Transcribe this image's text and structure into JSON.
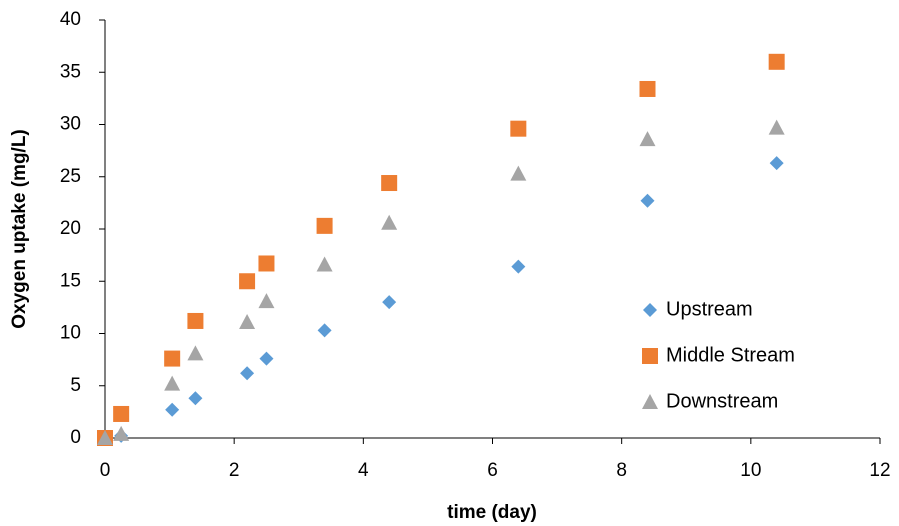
{
  "chart_data": {
    "type": "scatter",
    "xlabel": "time (day)",
    "ylabel": "Oxygen uptake (mg/L)",
    "xlim": [
      0,
      12
    ],
    "xticks": [
      0,
      2,
      4,
      6,
      8,
      10,
      12
    ],
    "ylim": [
      0,
      40
    ],
    "yticks": [
      0,
      5,
      10,
      15,
      20,
      25,
      30,
      35,
      40
    ],
    "grid": false,
    "legend": "center right",
    "series": [
      {
        "name": "Upstream",
        "color": "#5b9bd5",
        "marker": "diamond",
        "x": [
          0,
          0.25,
          1.04,
          1.4,
          2.2,
          2.5,
          3.4,
          4.4,
          6.4,
          8.4,
          10.4
        ],
        "values": [
          0,
          0.2,
          2.7,
          3.8,
          6.2,
          7.6,
          10.3,
          13,
          16.4,
          22.7,
          26.3
        ]
      },
      {
        "name": "Middle Stream",
        "color": "#ed7d31",
        "marker": "square",
        "x": [
          0,
          0.25,
          1.04,
          1.4,
          2.2,
          2.5,
          3.4,
          4.4,
          6.4,
          8.4,
          10.4
        ],
        "values": [
          0,
          2.3,
          7.6,
          11.2,
          15,
          16.7,
          20.3,
          24.4,
          29.6,
          33.4,
          36
        ]
      },
      {
        "name": "Downstream",
        "color": "#a5a5a5",
        "marker": "triangle",
        "x": [
          0,
          0.25,
          1.04,
          1.4,
          2.2,
          2.5,
          3.4,
          4.4,
          6.4,
          8.4,
          10.4
        ],
        "values": [
          0,
          0.4,
          5.2,
          8.1,
          11.1,
          13.1,
          16.6,
          20.6,
          25.3,
          28.6,
          29.7
        ]
      }
    ]
  }
}
